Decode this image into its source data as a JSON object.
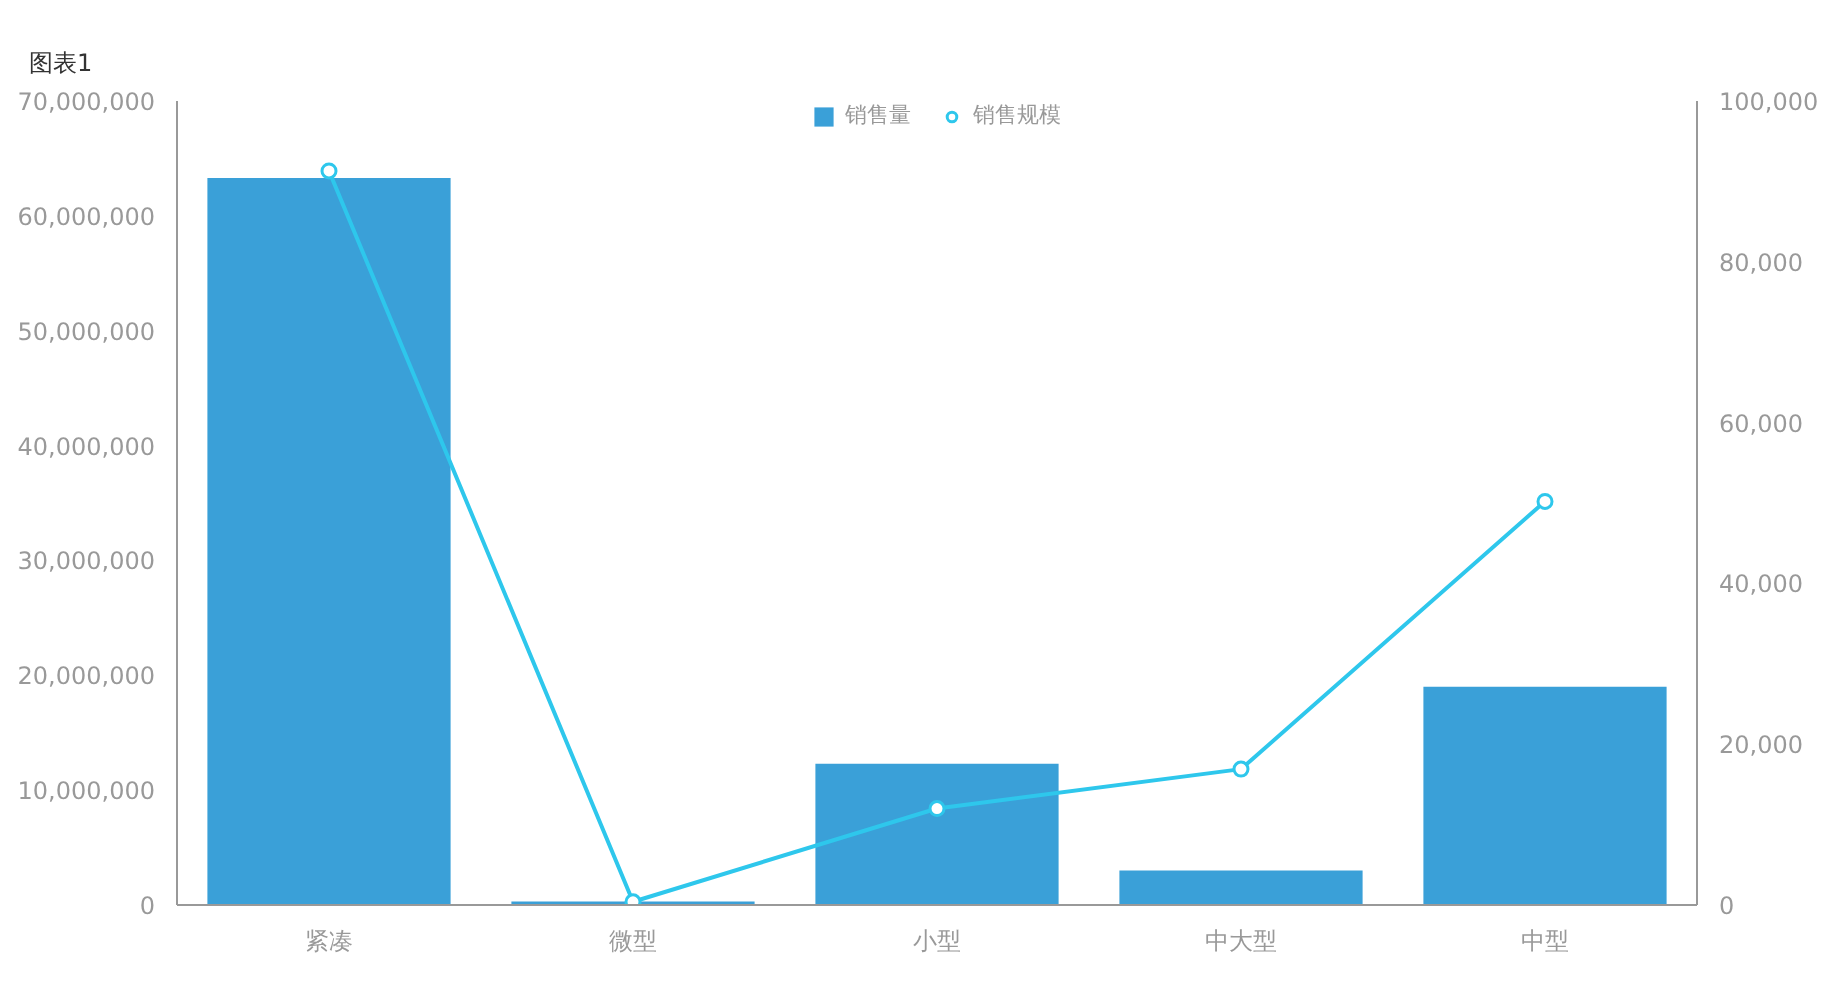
{
  "chart_data": {
    "type": "bar",
    "title": "图表1",
    "categories": [
      "紧凑",
      "微型",
      "小型",
      "中大型",
      "中型"
    ],
    "series": [
      {
        "name": "销售量",
        "color": "#3aa0d8",
        "values": [
          63300000,
          300000,
          12300000,
          3000000,
          19000000
        ]
      },
      {
        "name": "销售规模",
        "type": "line",
        "axis": "y2",
        "color": "#2ec7ec",
        "values": [
          91300,
          400,
          12000,
          16900,
          50200
        ]
      }
    ],
    "ylim": [
      0,
      70000000
    ],
    "yticks": [
      0,
      {
        "value": 10000000,
        "label": "10,000,000"
      },
      {
        "value": 20000000,
        "label": "20,000,000"
      },
      {
        "value": 30000000,
        "label": "30,000,000"
      },
      {
        "value": 40000000,
        "label": "40,000,000"
      },
      {
        "value": 50000000,
        "label": "50,000,000"
      },
      {
        "value": 60000000,
        "label": "60,000,000"
      },
      {
        "value": 70000000,
        "label": "70,000,000"
      }
    ],
    "y2lim": [
      0,
      100000
    ],
    "y2ticks": [
      0,
      {
        "value": 20000,
        "label": "20,000"
      },
      {
        "value": 40000,
        "label": "40,000"
      },
      {
        "value": 60000,
        "label": "60,000"
      },
      {
        "value": 80000,
        "label": "80,000"
      },
      {
        "value": 100000,
        "label": "100,000"
      }
    ],
    "legend": "top",
    "marker": "circle",
    "line_style": "solid"
  }
}
